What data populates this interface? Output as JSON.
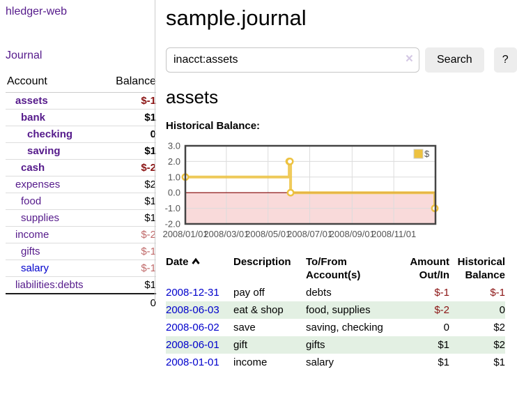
{
  "app_title": "hledger-web",
  "sidebar": {
    "journal_link": "Journal",
    "accounts": {
      "col_account": "Account",
      "col_balance": "Balance",
      "rows": [
        {
          "account": "assets",
          "balance": "$-1",
          "depth": 1,
          "bold": true
        },
        {
          "account": "bank",
          "balance": "$1",
          "depth": 2,
          "bold": true
        },
        {
          "account": "checking",
          "balance": "0",
          "depth": 3,
          "bold": true
        },
        {
          "account": "saving",
          "balance": "$1",
          "depth": 3,
          "bold": true
        },
        {
          "account": "cash",
          "balance": "$-2",
          "depth": 2,
          "bold": true
        },
        {
          "account": "expenses",
          "balance": "$2",
          "depth": 1
        },
        {
          "account": "food",
          "balance": "$1",
          "depth": 2
        },
        {
          "account": "supplies",
          "balance": "$1",
          "depth": 2
        },
        {
          "account": "income",
          "balance": "$-2",
          "depth": 1,
          "muted_negative": true
        },
        {
          "account": "gifts",
          "balance": "$-1",
          "depth": 2,
          "muted_negative": true
        },
        {
          "account": "salary",
          "balance": "$-1",
          "depth": 2,
          "muted_negative": true,
          "link_color": "#0000cc"
        },
        {
          "account": "liabilities:debts",
          "balance": "$1",
          "depth": 1
        }
      ],
      "total": "0"
    }
  },
  "main": {
    "title": "sample.journal",
    "search": {
      "value": "inacct:assets",
      "clear_label": "×",
      "button_label": "Search",
      "help_label": "?"
    },
    "account_heading": "assets",
    "chart_label": "Historical Balance:",
    "register": {
      "headers": {
        "date": "Date",
        "description": "Description",
        "accounts": "To/From Account(s)",
        "amount": "Amount Out/In",
        "balance": "Historical Balance"
      },
      "rows": [
        {
          "date": "2008-12-31",
          "description": "pay off",
          "accounts": "debts",
          "amount": "$-1",
          "balance": "$-1"
        },
        {
          "date": "2008-06-03",
          "description": "eat & shop",
          "accounts": "food, supplies",
          "amount": "$-2",
          "balance": "0"
        },
        {
          "date": "2008-06-02",
          "description": "save",
          "accounts": "saving, checking",
          "amount": "0",
          "balance": "$2"
        },
        {
          "date": "2008-06-01",
          "description": "gift",
          "accounts": "gifts",
          "amount": "$1",
          "balance": "$2"
        },
        {
          "date": "2008-01-01",
          "description": "income",
          "accounts": "salary",
          "amount": "$1",
          "balance": "$1"
        }
      ]
    }
  },
  "chart_data": {
    "type": "line",
    "title": "Historical Balance:",
    "step": true,
    "series": [
      {
        "name": "$",
        "color": "#edc240",
        "points": [
          [
            "2008-01-01",
            1
          ],
          [
            "2008-06-01",
            2
          ],
          [
            "2008-06-02",
            2
          ],
          [
            "2008-06-03",
            0
          ],
          [
            "2008-12-31",
            -1
          ]
        ]
      }
    ],
    "xlim": [
      "2008-01-01",
      "2009-01-01"
    ],
    "ylim": [
      -2,
      3
    ],
    "y_ticks": [
      3,
      2,
      1,
      0,
      -1,
      -2
    ],
    "x_ticks": [
      {
        "pos": "2008-01-01",
        "label": "2008/01/01"
      },
      {
        "pos": "2008-03-01",
        "label": "2008/03/01"
      },
      {
        "pos": "2008-05-01",
        "label": "2008/05/01"
      },
      {
        "pos": "2008-07-01",
        "label": "2008/07/01"
      },
      {
        "pos": "2008-09-01",
        "label": "2008/09/01"
      },
      {
        "pos": "2008-11-01",
        "label": "2008/11/01"
      }
    ],
    "legend": {
      "label": "$",
      "position": "top-right"
    },
    "grid": true,
    "grid_color": "#dcdcdc",
    "zero_line_color": "#800000",
    "negative_region_color": "#f9dada",
    "plot_border_color": "#444444"
  },
  "colors": {
    "link_purple": "#551a8b",
    "link_blue": "#0000cc",
    "negative": "#8b1414",
    "negative_muted": "#c06a6a",
    "row_stripe_green": "#e3f0e3",
    "button_bg": "#ededed",
    "series_gold": "#edc240"
  },
  "icons": {
    "sort_ascending_icon": "chevron-up",
    "clear_icon": "×"
  }
}
